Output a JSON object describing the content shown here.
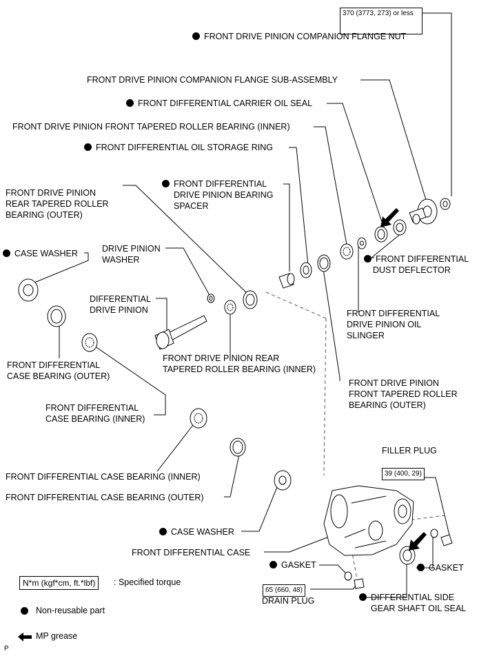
{
  "torques": {
    "flange_nut": "370 (3773, 273) or less",
    "filler_plug": "39 (400, 29)",
    "drain_plug": "65 (660, 48)"
  },
  "labels": {
    "flange_nut": "FRONT DRIVE PINION COMPANION FLANGE NUT",
    "flange_sub": "FRONT DRIVE PINION COMPANION FLANGE SUB-ASSEMBLY",
    "carrier_oil_seal": "FRONT DIFFERENTIAL CARRIER OIL SEAL",
    "front_bearing_inner": "FRONT DRIVE PINION FRONT TAPERED ROLLER BEARING (INNER)",
    "oil_storage_ring": "FRONT DIFFERENTIAL OIL STORAGE RING",
    "spacer": [
      "FRONT DIFFERENTIAL",
      "DRIVE PINION BEARING",
      "SPACER"
    ],
    "rear_bearing_outer": [
      "FRONT DRIVE PINION",
      "REAR TAPERED ROLLER",
      "BEARING (OUTER)"
    ],
    "case_washer_top": "CASE WASHER",
    "drive_pinion_washer": [
      "DRIVE PINION",
      "WASHER"
    ],
    "dust_deflector": [
      "FRONT DIFFERENTIAL",
      "DUST DEFLECTOR"
    ],
    "differential_drive_pinion": [
      "DIFFERENTIAL",
      "DRIVE PINION"
    ],
    "oil_slinger": [
      "FRONT DIFFERENTIAL",
      "DRIVE PINION OIL",
      "SLINGER"
    ],
    "rear_bearing_inner": [
      "FRONT DRIVE PINION REAR",
      "TAPERED ROLLER BEARING (INNER)"
    ],
    "case_bearing_outer_left": [
      "FRONT DIFFERENTIAL",
      "CASE BEARING (OUTER)"
    ],
    "front_bearing_outer": [
      "FRONT DRIVE PINION",
      "FRONT TAPERED ROLLER",
      "BEARING (OUTER)"
    ],
    "case_bearing_inner_left": [
      "FRONT DIFFERENTIAL",
      "CASE BEARING (INNER)"
    ],
    "filler_plug": "FILLER PLUG",
    "case_bearing_inner_right": "FRONT DIFFERENTIAL CASE BEARING (INNER)",
    "case_bearing_outer_right": "FRONT DIFFERENTIAL CASE BEARING (OUTER)",
    "case_washer_bottom": "CASE WASHER",
    "diff_case": "FRONT DIFFERENTIAL CASE",
    "gasket_left": "GASKET",
    "gasket_right": "GASKET",
    "drain_plug": "DRAIN PLUG",
    "side_gear_seal": [
      "DIFFERENTIAL SIDE",
      "GEAR SHAFT OIL SEAL"
    ]
  },
  "legend": {
    "torque_sample": "N*m (kgf*cm, ft.*lbf)",
    "torque_text": ": Specified torque",
    "nonreusable_text": "Non-reusable part",
    "grease_text": "MP grease"
  },
  "corner_mark": "P"
}
